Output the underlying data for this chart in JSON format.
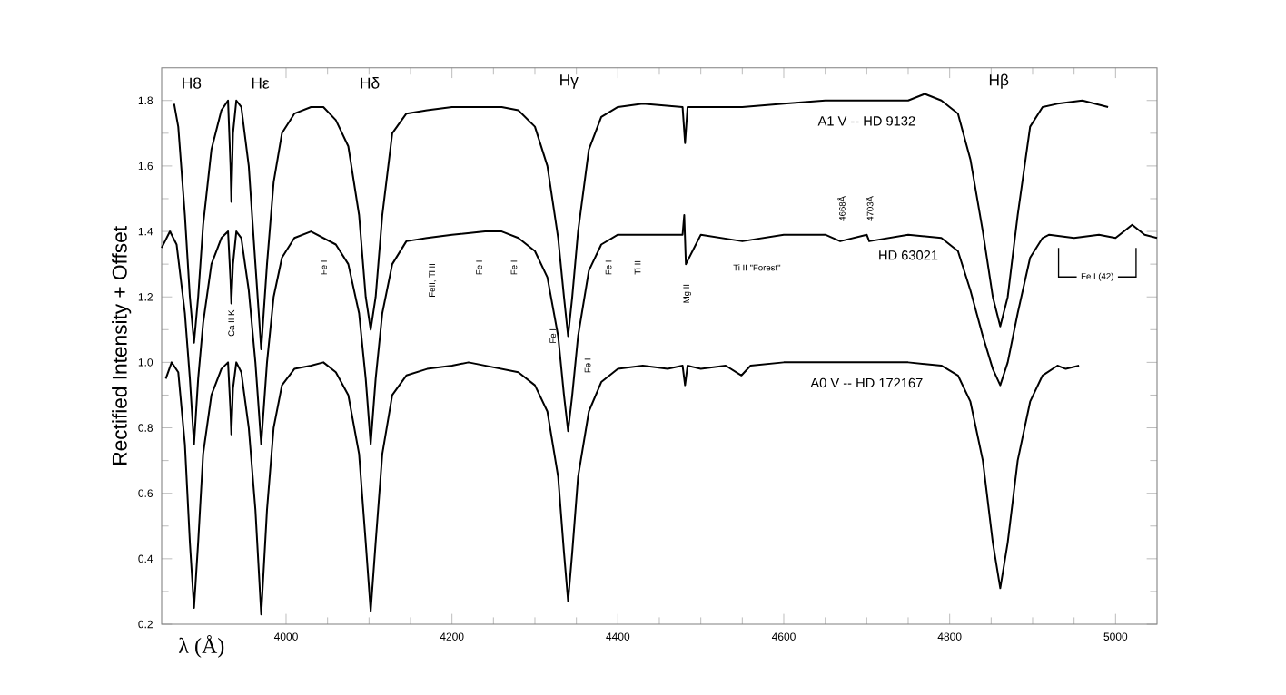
{
  "chart_data": {
    "type": "line",
    "xlabel": "λ (Å)",
    "ylabel": "Rectified Intensity + Offset",
    "xlim": [
      3850,
      5050
    ],
    "ylim": [
      0.2,
      1.9
    ],
    "xticks": [
      4000,
      4200,
      4400,
      4600,
      4800,
      5000
    ],
    "yticks": [
      0.2,
      0.4,
      0.6,
      0.8,
      {
        "value": 1.0,
        "label": "1.0"
      },
      1.2,
      1.4,
      1.6,
      1.8
    ],
    "legend": false,
    "grid": false,
    "marker": "none",
    "line_style": "solid",
    "series": [
      {
        "name": "A1 V -- HD 9132",
        "color": "#000000",
        "x": [
          3865,
          3870,
          3878,
          3884,
          3889,
          3894,
          3900,
          3910,
          3922,
          3930,
          3933,
          3934,
          3936,
          3940,
          3946,
          3955,
          3963,
          3970,
          3977,
          3985,
          3995,
          4010,
          4030,
          4045,
          4060,
          4075,
          4088,
          4096,
          4102,
          4108,
          4116,
          4128,
          4145,
          4170,
          4200,
          4240,
          4260,
          4280,
          4300,
          4315,
          4328,
          4335,
          4340,
          4345,
          4352,
          4365,
          4380,
          4400,
          4430,
          4478,
          4481,
          4484,
          4500,
          4550,
          4600,
          4650,
          4700,
          4750,
          4770,
          4790,
          4810,
          4825,
          4840,
          4852,
          4861,
          4870,
          4882,
          4897,
          4912,
          4930,
          4960,
          4991
        ],
        "values": [
          1.79,
          1.72,
          1.45,
          1.2,
          1.06,
          1.2,
          1.42,
          1.65,
          1.77,
          1.8,
          1.6,
          1.49,
          1.7,
          1.8,
          1.78,
          1.6,
          1.3,
          1.04,
          1.3,
          1.55,
          1.7,
          1.76,
          1.78,
          1.78,
          1.74,
          1.66,
          1.45,
          1.2,
          1.1,
          1.2,
          1.45,
          1.7,
          1.76,
          1.77,
          1.78,
          1.78,
          1.78,
          1.77,
          1.72,
          1.6,
          1.38,
          1.2,
          1.08,
          1.2,
          1.4,
          1.65,
          1.75,
          1.78,
          1.79,
          1.78,
          1.67,
          1.78,
          1.78,
          1.78,
          1.79,
          1.8,
          1.8,
          1.8,
          1.82,
          1.8,
          1.76,
          1.62,
          1.4,
          1.2,
          1.11,
          1.2,
          1.45,
          1.72,
          1.78,
          1.79,
          1.8,
          1.78
        ]
      },
      {
        "name": "HD 63021",
        "color": "#000000",
        "x": [
          3850,
          3860,
          3868,
          3878,
          3884,
          3889,
          3894,
          3900,
          3910,
          3922,
          3930,
          3933,
          3934,
          3936,
          3940,
          3946,
          3955,
          3963,
          3970,
          3977,
          3985,
          3995,
          4010,
          4030,
          4045,
          4060,
          4075,
          4088,
          4096,
          4102,
          4108,
          4116,
          4128,
          4145,
          4170,
          4200,
          4240,
          4260,
          4280,
          4300,
          4315,
          4328,
          4335,
          4340,
          4345,
          4352,
          4365,
          4380,
          4400,
          4430,
          4478,
          4480,
          4482,
          4500,
          4550,
          4600,
          4650,
          4668,
          4700,
          4703,
          4750,
          4790,
          4810,
          4825,
          4840,
          4852,
          4861,
          4870,
          4882,
          4897,
          4912,
          4920,
          4950,
          4980,
          5000,
          5020,
          5035,
          5050
        ],
        "values": [
          1.35,
          1.4,
          1.36,
          1.15,
          0.95,
          0.75,
          0.95,
          1.12,
          1.3,
          1.38,
          1.4,
          1.25,
          1.18,
          1.3,
          1.4,
          1.38,
          1.22,
          1.0,
          0.75,
          1.0,
          1.2,
          1.32,
          1.38,
          1.4,
          1.38,
          1.36,
          1.3,
          1.15,
          0.95,
          0.75,
          0.95,
          1.15,
          1.3,
          1.37,
          1.38,
          1.39,
          1.4,
          1.4,
          1.38,
          1.34,
          1.26,
          1.08,
          0.9,
          0.79,
          0.9,
          1.08,
          1.28,
          1.36,
          1.39,
          1.39,
          1.39,
          1.45,
          1.3,
          1.39,
          1.37,
          1.39,
          1.39,
          1.37,
          1.39,
          1.37,
          1.39,
          1.38,
          1.34,
          1.22,
          1.08,
          0.98,
          0.93,
          1.0,
          1.15,
          1.32,
          1.38,
          1.39,
          1.38,
          1.39,
          1.38,
          1.42,
          1.39,
          1.38
        ]
      },
      {
        "name": "A0 V -- HD 172167",
        "color": "#000000",
        "x": [
          3855,
          3862,
          3870,
          3878,
          3884,
          3889,
          3894,
          3900,
          3910,
          3922,
          3930,
          3933,
          3934,
          3936,
          3940,
          3946,
          3955,
          3963,
          3970,
          3977,
          3985,
          3995,
          4010,
          4030,
          4045,
          4060,
          4075,
          4088,
          4096,
          4102,
          4108,
          4116,
          4128,
          4145,
          4170,
          4200,
          4220,
          4240,
          4260,
          4280,
          4300,
          4315,
          4328,
          4335,
          4340,
          4345,
          4352,
          4365,
          4380,
          4400,
          4430,
          4460,
          4478,
          4481,
          4484,
          4500,
          4530,
          4549,
          4560,
          4600,
          4650,
          4700,
          4750,
          4790,
          4810,
          4825,
          4840,
          4852,
          4861,
          4870,
          4882,
          4897,
          4912,
          4930,
          4940,
          4956
        ],
        "values": [
          0.95,
          1.0,
          0.97,
          0.75,
          0.45,
          0.25,
          0.45,
          0.72,
          0.9,
          0.98,
          1.0,
          0.85,
          0.78,
          0.92,
          1.0,
          0.97,
          0.8,
          0.55,
          0.23,
          0.55,
          0.8,
          0.93,
          0.98,
          0.99,
          1.0,
          0.97,
          0.9,
          0.72,
          0.45,
          0.24,
          0.45,
          0.72,
          0.9,
          0.96,
          0.98,
          0.99,
          1.0,
          0.99,
          0.98,
          0.97,
          0.93,
          0.85,
          0.65,
          0.42,
          0.27,
          0.42,
          0.65,
          0.85,
          0.94,
          0.98,
          0.99,
          0.98,
          0.99,
          0.93,
          0.99,
          0.98,
          0.99,
          0.96,
          0.99,
          1.0,
          1.0,
          1.0,
          1.0,
          0.99,
          0.96,
          0.88,
          0.7,
          0.45,
          0.31,
          0.45,
          0.7,
          0.88,
          0.96,
          0.99,
          0.98,
          0.99
        ]
      }
    ],
    "annotations": [
      "H8",
      "Hε",
      "Hδ",
      "Hγ",
      "Hβ",
      "Ca II K",
      "Fe I",
      "FeII, Ti II",
      "Fe I",
      "Fe I",
      "Fe I",
      "Fe I",
      "Fe I",
      "Ti II",
      "Mg II",
      "Ti II \"Forest\"",
      "4668Å",
      "4703Å",
      "Fe I (42)"
    ]
  }
}
